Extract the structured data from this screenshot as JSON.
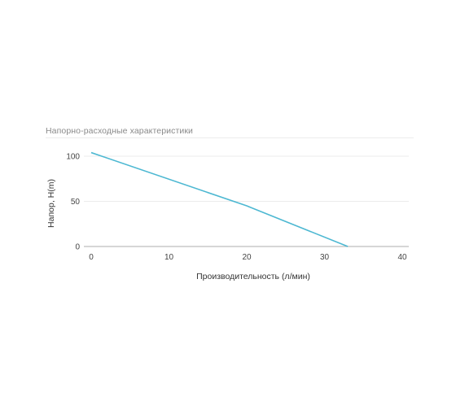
{
  "chart_data": {
    "type": "line",
    "title": "Напорно-расходные характеристики",
    "xlabel": "Производительность (л/мин)",
    "ylabel": "Напор, H(m)",
    "xlim": [
      0,
      40
    ],
    "ylim": [
      0,
      110
    ],
    "xticks": [
      0,
      10,
      20,
      30,
      40
    ],
    "yticks": [
      0,
      50,
      100
    ],
    "grid": true,
    "legend": "none",
    "series": [
      {
        "color": "#4db8d2",
        "x": [
          0,
          20,
          33
        ],
        "y": [
          104,
          45,
          0
        ]
      }
    ]
  }
}
